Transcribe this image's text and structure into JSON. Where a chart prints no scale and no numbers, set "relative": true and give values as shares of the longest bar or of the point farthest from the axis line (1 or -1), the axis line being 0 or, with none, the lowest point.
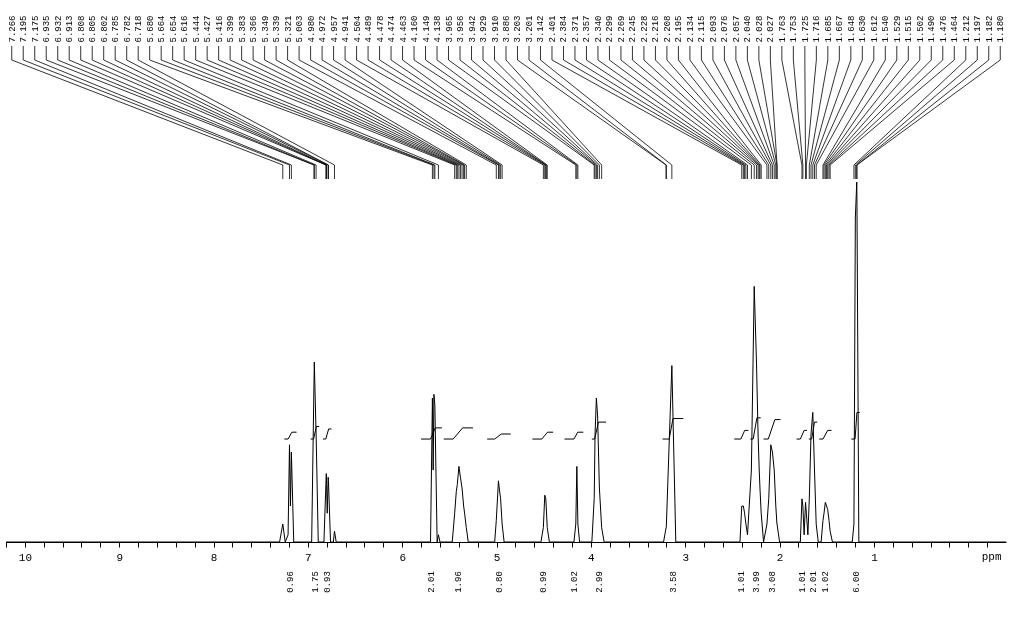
{
  "chart_data": {
    "type": "line",
    "relative": true,
    "xlabel": "ppm",
    "xlim": [
      10.2,
      -0.4
    ],
    "xticks": [
      {
        "value": 10.2,
        "label": null
      },
      10,
      {
        "value": 9.8,
        "label": null
      },
      {
        "value": 9.6,
        "label": null
      },
      {
        "value": 9.4,
        "label": null
      },
      {
        "value": 9.2,
        "label": null
      },
      9,
      {
        "value": 8.8,
        "label": null
      },
      {
        "value": 8.6,
        "label": null
      },
      {
        "value": 8.4,
        "label": null
      },
      {
        "value": 8.2,
        "label": null
      },
      8,
      {
        "value": 7.8,
        "label": null
      },
      {
        "value": 7.6,
        "label": null
      },
      {
        "value": 7.4,
        "label": null
      },
      {
        "value": 7.2,
        "label": null
      },
      7,
      {
        "value": 6.8,
        "label": null
      },
      {
        "value": 6.6,
        "label": null
      },
      {
        "value": 6.4,
        "label": null
      },
      {
        "value": 6.2,
        "label": null
      },
      6,
      {
        "value": 5.8,
        "label": null
      },
      {
        "value": 5.6,
        "label": null
      },
      {
        "value": 5.4,
        "label": null
      },
      {
        "value": 5.2,
        "label": null
      },
      5,
      {
        "value": 4.8,
        "label": null
      },
      {
        "value": 4.6,
        "label": null
      },
      {
        "value": 4.4,
        "label": null
      },
      {
        "value": 4.2,
        "label": null
      },
      4,
      {
        "value": 3.8,
        "label": null
      },
      {
        "value": 3.6,
        "label": null
      },
      {
        "value": 3.4,
        "label": null
      },
      {
        "value": 3.2,
        "label": null
      },
      3,
      {
        "value": 2.8,
        "label": null
      },
      {
        "value": 2.6,
        "label": null
      },
      {
        "value": 2.4,
        "label": null
      },
      {
        "value": 2.2,
        "label": null
      },
      2,
      {
        "value": 1.8,
        "label": null
      },
      {
        "value": 1.6,
        "label": null
      },
      {
        "value": 1.4,
        "label": null
      },
      {
        "value": 1.2,
        "label": null
      },
      1,
      {
        "value": 0.8,
        "label": null
      },
      {
        "value": 0.6,
        "label": null
      },
      {
        "value": 0.4,
        "label": null
      },
      {
        "value": 0.2,
        "label": null
      },
      {
        "value": 0,
        "label": null
      },
      {
        "value": -0.2,
        "label": null
      }
    ],
    "series": [
      {
        "color": "#000000",
        "x": [
          10.2,
          7.3,
          7.266,
          7.24,
          7.21,
          7.195,
          7.185,
          7.175,
          7.15,
          6.96,
          6.935,
          6.932,
          6.913,
          6.89,
          6.83,
          6.808,
          6.805,
          6.802,
          6.795,
          6.785,
          6.782,
          6.76,
          6.73,
          6.718,
          6.7,
          5.7,
          5.68,
          5.672,
          5.664,
          5.654,
          5.63,
          5.616,
          5.6,
          5.47,
          5.444,
          5.427,
          5.416,
          5.399,
          5.383,
          5.366,
          5.349,
          5.339,
          5.321,
          5.3,
          5.02,
          5.003,
          4.98,
          4.972,
          4.957,
          4.941,
          4.92,
          4.53,
          4.504,
          4.489,
          4.478,
          4.474,
          4.463,
          4.44,
          4.18,
          4.16,
          4.149,
          4.138,
          4.12,
          3.99,
          3.965,
          3.956,
          3.942,
          3.929,
          3.91,
          3.886,
          3.86,
          3.23,
          3.203,
          3.201,
          3.142,
          3.1,
          2.42,
          2.401,
          2.384,
          2.371,
          2.357,
          2.34,
          2.299,
          2.269,
          2.245,
          2.228,
          2.216,
          2.208,
          2.195,
          2.17,
          2.134,
          2.115,
          2.093,
          2.076,
          2.057,
          2.04,
          2.028,
          2.027,
          2.0,
          1.78,
          1.763,
          1.753,
          1.74,
          1.725,
          1.716,
          1.7,
          1.685,
          1.667,
          1.648,
          1.63,
          1.612,
          1.59,
          1.56,
          1.54,
          1.529,
          1.515,
          1.502,
          1.49,
          1.476,
          1.464,
          1.44,
          1.23,
          1.212,
          1.197,
          1.182,
          1.18,
          1.16,
          -0.4
        ],
        "values": [
          0,
          0,
          0.05,
          0,
          0.02,
          0.27,
          0.1,
          0.25,
          0,
          0,
          0.45,
          0.5,
          0.3,
          0,
          0,
          0.17,
          0.19,
          0.16,
          0.08,
          0.18,
          0.17,
          0,
          0,
          0.03,
          0,
          0,
          0.4,
          0.2,
          0.41,
          0.38,
          0,
          0.02,
          0,
          0,
          0.08,
          0.14,
          0.16,
          0.21,
          0.18,
          0.15,
          0.1,
          0.08,
          0.04,
          0,
          0,
          0.06,
          0.17,
          0.15,
          0.12,
          0.05,
          0,
          0,
          0.04,
          0.13,
          0.12,
          0.1,
          0.04,
          0,
          0,
          0.05,
          0.21,
          0.05,
          0,
          0,
          0.12,
          0.3,
          0.4,
          0.35,
          0.15,
          0.04,
          0,
          0,
          0.04,
          0.04,
          0.49,
          0,
          0,
          0.1,
          0.1,
          0.08,
          0.05,
          0.02,
          0.2,
          0.71,
          0.5,
          0.3,
          0.2,
          0.15,
          0.08,
          0,
          0.05,
          0.12,
          0.27,
          0.25,
          0.2,
          0.1,
          0.05,
          0.05,
          0,
          0,
          0.12,
          0.1,
          0.02,
          0.11,
          0.08,
          0.02,
          0.12,
          0.3,
          0.36,
          0.2,
          0.05,
          0,
          0,
          0.06,
          0.08,
          0.11,
          0.1,
          0.09,
          0.06,
          0.03,
          0,
          0,
          0.05,
          0.9,
          1,
          0.95,
          0,
          0
        ]
      },
      {
        "color": "#000000",
        "x": [
          7.25,
          7.21,
          7.17,
          7.12,
          null,
          6.97,
          6.94,
          6.91,
          6.88,
          null,
          6.84,
          6.81,
          6.78,
          6.75,
          null,
          5.8,
          5.7,
          5.65,
          5.58,
          null,
          5.56,
          5.46,
          5.36,
          5.25,
          null,
          5.1,
          5.02,
          4.95,
          4.85,
          null,
          4.62,
          4.52,
          4.46,
          4.4,
          null,
          4.28,
          4.18,
          4.14,
          4.08,
          null,
          3.99,
          3.96,
          3.92,
          3.84,
          null,
          3.24,
          3.17,
          3.13,
          3.02,
          null,
          2.48,
          2.41,
          2.37,
          2.33,
          null,
          2.31,
          2.28,
          2.24,
          2.2,
          null,
          2.17,
          2.12,
          2.05,
          1.99,
          null,
          1.82,
          1.78,
          1.74,
          1.71,
          null,
          1.69,
          1.66,
          1.63,
          1.6,
          null,
          1.58,
          1.54,
          1.49,
          1.45,
          null,
          1.24,
          1.2,
          1.18,
          1.15
        ],
        "values": [
          0.286,
          0.286,
          0.305,
          0.305,
          null,
          0.286,
          0.286,
          0.321,
          0.321,
          null,
          0.286,
          0.286,
          0.314,
          0.314,
          null,
          0.286,
          0.286,
          0.317,
          0.317,
          null,
          0.286,
          0.286,
          0.317,
          0.317,
          null,
          0.286,
          0.286,
          0.3,
          0.3,
          null,
          0.286,
          0.286,
          0.305,
          0.305,
          null,
          0.286,
          0.286,
          0.305,
          0.305,
          null,
          0.286,
          0.286,
          0.333,
          0.333,
          null,
          0.286,
          0.286,
          0.343,
          0.343,
          null,
          0.286,
          0.286,
          0.31,
          0.31,
          null,
          0.286,
          0.286,
          0.345,
          0.345,
          null,
          0.286,
          0.286,
          0.34,
          0.34,
          null,
          0.286,
          0.286,
          0.31,
          0.31,
          null,
          0.286,
          0.286,
          0.333,
          0.333,
          null,
          0.286,
          0.286,
          0.31,
          0.31,
          null,
          0.286,
          0.286,
          0.36,
          0.36
        ]
      }
    ],
    "annotations": [
      {
        "text": "7.266",
        "x": 7.266
      },
      {
        "text": "7.195",
        "x": 7.195
      },
      {
        "text": "7.175",
        "x": 7.175
      },
      {
        "text": "6.935",
        "x": 6.935
      },
      {
        "text": "6.932",
        "x": 6.932
      },
      {
        "text": "6.913",
        "x": 6.913
      },
      {
        "text": "6.808",
        "x": 6.808
      },
      {
        "text": "6.805",
        "x": 6.805
      },
      {
        "text": "6.802",
        "x": 6.802
      },
      {
        "text": "6.785",
        "x": 6.785
      },
      {
        "text": "6.782",
        "x": 6.782
      },
      {
        "text": "6.718",
        "x": 6.718
      },
      {
        "text": "5.680",
        "x": 5.68
      },
      {
        "text": "5.664",
        "x": 5.664
      },
      {
        "text": "5.654",
        "x": 5.654
      },
      {
        "text": "5.616",
        "x": 5.616
      },
      {
        "text": "5.444",
        "x": 5.444
      },
      {
        "text": "5.427",
        "x": 5.427
      },
      {
        "text": "5.416",
        "x": 5.416
      },
      {
        "text": "5.399",
        "x": 5.399
      },
      {
        "text": "5.383",
        "x": 5.383
      },
      {
        "text": "5.366",
        "x": 5.366
      },
      {
        "text": "5.349",
        "x": 5.349
      },
      {
        "text": "5.339",
        "x": 5.339
      },
      {
        "text": "5.321",
        "x": 5.321
      },
      {
        "text": "5.003",
        "x": 5.003
      },
      {
        "text": "4.980",
        "x": 4.98
      },
      {
        "text": "4.972",
        "x": 4.972
      },
      {
        "text": "4.957",
        "x": 4.957
      },
      {
        "text": "4.941",
        "x": 4.941
      },
      {
        "text": "4.504",
        "x": 4.504
      },
      {
        "text": "4.489",
        "x": 4.489
      },
      {
        "text": "4.478",
        "x": 4.478
      },
      {
        "text": "4.474",
        "x": 4.474
      },
      {
        "text": "4.463",
        "x": 4.463
      },
      {
        "text": "4.160",
        "x": 4.16
      },
      {
        "text": "4.149",
        "x": 4.149
      },
      {
        "text": "4.138",
        "x": 4.138
      },
      {
        "text": "3.965",
        "x": 3.965
      },
      {
        "text": "3.956",
        "x": 3.956
      },
      {
        "text": "3.942",
        "x": 3.942
      },
      {
        "text": "3.929",
        "x": 3.929
      },
      {
        "text": "3.910",
        "x": 3.91
      },
      {
        "text": "3.886",
        "x": 3.886
      },
      {
        "text": "3.203",
        "x": 3.203
      },
      {
        "text": "3.201",
        "x": 3.201
      },
      {
        "text": "3.142",
        "x": 3.142
      },
      {
        "text": "2.401",
        "x": 2.401
      },
      {
        "text": "2.384",
        "x": 2.384
      },
      {
        "text": "2.371",
        "x": 2.371
      },
      {
        "text": "2.357",
        "x": 2.357
      },
      {
        "text": "2.340",
        "x": 2.34
      },
      {
        "text": "2.299",
        "x": 2.299
      },
      {
        "text": "2.269",
        "x": 2.269
      },
      {
        "text": "2.245",
        "x": 2.245
      },
      {
        "text": "2.228",
        "x": 2.228
      },
      {
        "text": "2.216",
        "x": 2.216
      },
      {
        "text": "2.208",
        "x": 2.208
      },
      {
        "text": "2.195",
        "x": 2.195
      },
      {
        "text": "2.134",
        "x": 2.134
      },
      {
        "text": "2.115",
        "x": 2.115
      },
      {
        "text": "2.093",
        "x": 2.093
      },
      {
        "text": "2.076",
        "x": 2.076
      },
      {
        "text": "2.057",
        "x": 2.057
      },
      {
        "text": "2.040",
        "x": 2.04
      },
      {
        "text": "2.028",
        "x": 2.028
      },
      {
        "text": "2.027",
        "x": 2.027
      },
      {
        "text": "1.763",
        "x": 1.763
      },
      {
        "text": "1.753",
        "x": 1.753
      },
      {
        "text": "1.725",
        "x": 1.725
      },
      {
        "text": "1.716",
        "x": 1.716
      },
      {
        "text": "1.685",
        "x": 1.685
      },
      {
        "text": "1.667",
        "x": 1.667
      },
      {
        "text": "1.648",
        "x": 1.648
      },
      {
        "text": "1.630",
        "x": 1.63
      },
      {
        "text": "1.612",
        "x": 1.612
      },
      {
        "text": "1.540",
        "x": 1.54
      },
      {
        "text": "1.529",
        "x": 1.529
      },
      {
        "text": "1.515",
        "x": 1.515
      },
      {
        "text": "1.502",
        "x": 1.502
      },
      {
        "text": "1.490",
        "x": 1.49
      },
      {
        "text": "1.476",
        "x": 1.476
      },
      {
        "text": "1.464",
        "x": 1.464
      },
      {
        "text": "1.212",
        "x": 1.212
      },
      {
        "text": "1.197",
        "x": 1.197
      },
      {
        "text": "1.182",
        "x": 1.182
      },
      {
        "text": "1.180",
        "x": 1.18
      },
      "0.96",
      "1.75",
      "0.93",
      "2.01",
      "1.96",
      "0.80",
      "0.99",
      "1.02",
      "2.99",
      "3.58",
      "1.01",
      "3.99",
      "3.08",
      "1.01",
      "2.01",
      "1.02",
      "6.00"
    ]
  }
}
